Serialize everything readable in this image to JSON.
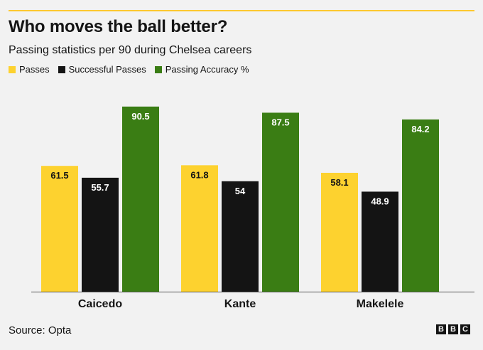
{
  "chart_data": {
    "type": "bar",
    "title": "Who moves the ball better?",
    "subtitle": "Passing statistics per 90 during Chelsea careers",
    "categories": [
      "Caicedo",
      "Kante",
      "Makelele"
    ],
    "series": [
      {
        "name": "Passes",
        "values": [
          61.5,
          61.8,
          58.1
        ],
        "color": "#fdd22f",
        "label_color": "#141414"
      },
      {
        "name": "Successful Passes",
        "values": [
          55.7,
          54,
          48.9
        ],
        "color": "#141414",
        "label_color": "#ffffff"
      },
      {
        "name": "Passing Accuracy %",
        "values": [
          90.5,
          87.5,
          84.2
        ],
        "color": "#3a7d14",
        "label_color": "#ffffff"
      }
    ],
    "ylim": [
      0,
      96
    ],
    "grid": false,
    "legend_position": "top-left"
  },
  "source": "Source: Opta",
  "logo": "BBC",
  "colors": {
    "accent_rule": "#fdc82f",
    "background": "#f2f2f2"
  }
}
